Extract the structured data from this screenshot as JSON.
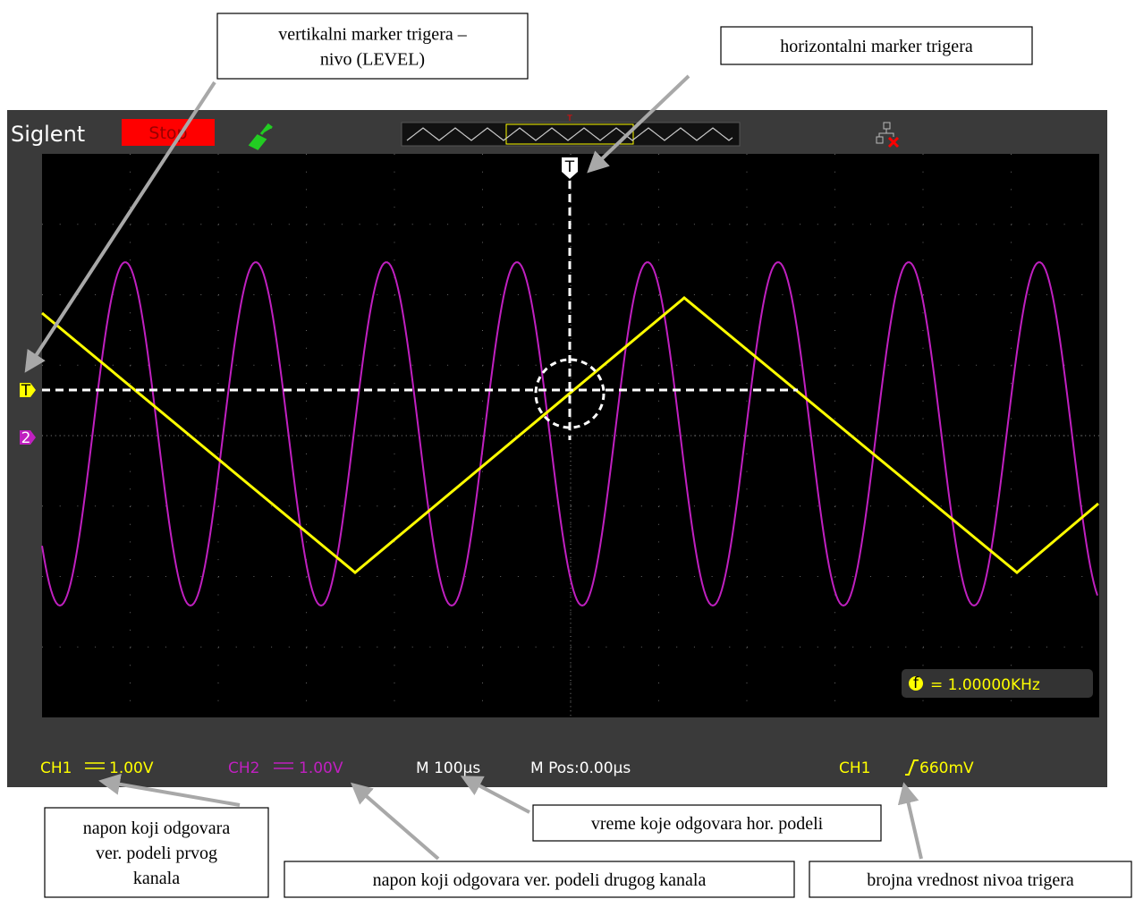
{
  "top_bar": {
    "brand": "Siglent",
    "status": "Stop"
  },
  "markers": {
    "trigger_top": "T",
    "trigger_level": "T",
    "channel2": "2"
  },
  "frequency": {
    "icon": "f",
    "text": "= 1.00000KHz"
  },
  "status_bar": {
    "ch1": {
      "label": "CH1",
      "scale": "1.00V"
    },
    "ch2": {
      "label": "CH2",
      "scale": "1.00V"
    },
    "timebase": "M 100µs",
    "position": "M Pos:0.00µs",
    "trigger": {
      "source": "CH1",
      "level": "660mV"
    }
  },
  "annotations": [
    {
      "lines": [
        "vertikalni marker trigera –",
        "nivo (LEVEL)"
      ]
    },
    {
      "lines": [
        "horizontalni marker trigera"
      ]
    },
    {
      "lines": [
        "napon koji odgovara",
        "ver. podeli prvog",
        "kanala"
      ]
    },
    {
      "lines": [
        "napon koji odgovara ver. podeli drugog kanala"
      ]
    },
    {
      "lines": [
        "vreme koje odgovara hor. podeli"
      ]
    },
    {
      "lines": [
        "brojna vrednost nivoa trigera"
      ]
    }
  ]
}
